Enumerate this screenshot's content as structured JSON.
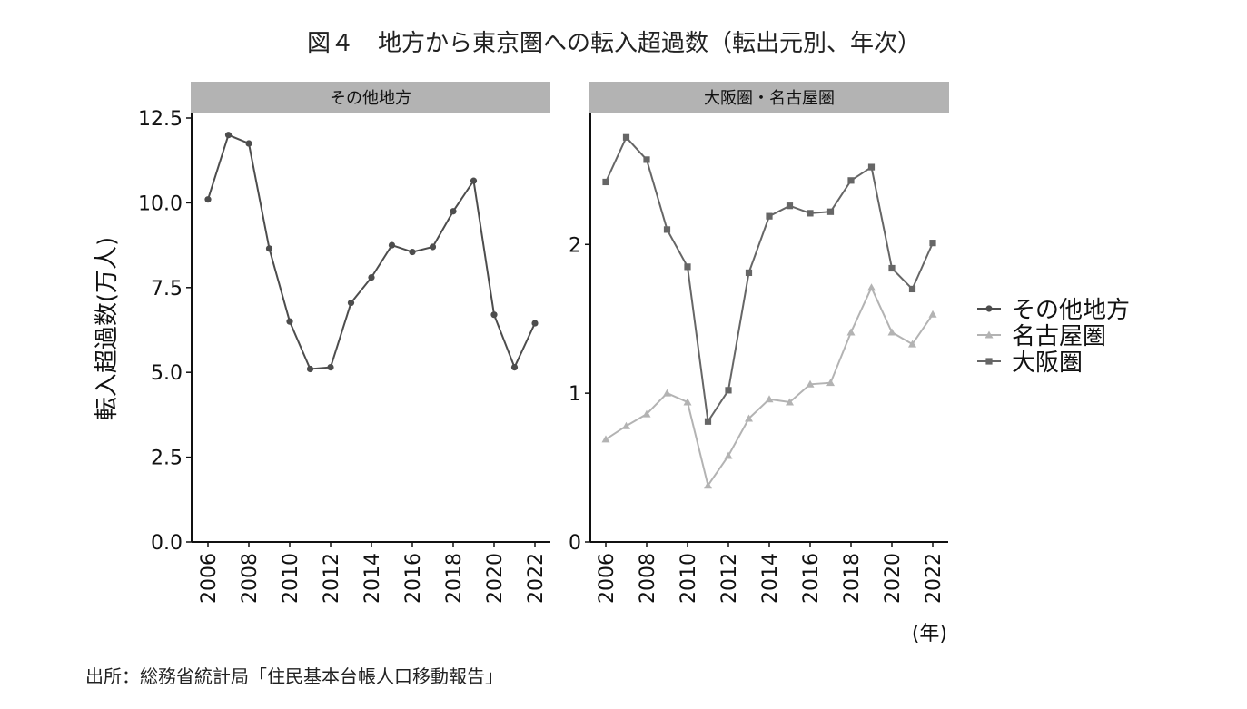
{
  "figure": {
    "title": "図４　地方から東京圏への転入超過数（転出元別、年次）",
    "source": "出所：総務省統計局「住民基本台帳人口移動報告」",
    "ylabel": "転入超過数(万人)",
    "x_unit": "(年)"
  },
  "legend": {
    "items": [
      {
        "label": "その他地方",
        "marker": "circle",
        "color": "#4d4d4d"
      },
      {
        "label": "名古屋圏",
        "marker": "triangle",
        "color": "#b3b3b3"
      },
      {
        "label": "大阪圏",
        "marker": "square",
        "color": "#666666"
      }
    ]
  },
  "chart_data": [
    {
      "type": "line",
      "panel": "その他地方",
      "x": [
        2006,
        2007,
        2008,
        2009,
        2010,
        2011,
        2012,
        2013,
        2014,
        2015,
        2016,
        2017,
        2018,
        2019,
        2020,
        2021,
        2022
      ],
      "xticks": [
        "2006",
        "2008",
        "2010",
        "2012",
        "2014",
        "2016",
        "2018",
        "2020",
        "2022"
      ],
      "ylim": [
        0,
        12.5
      ],
      "yticks": [
        "0.0",
        "2.5",
        "5.0",
        "7.5",
        "10.0",
        "12.5"
      ],
      "series": [
        {
          "name": "その他地方",
          "marker": "circle",
          "color": "#4d4d4d",
          "values": [
            10.1,
            12.0,
            11.75,
            8.65,
            6.5,
            5.1,
            5.15,
            7.05,
            7.8,
            8.75,
            8.55,
            8.7,
            9.75,
            10.65,
            6.7,
            5.15,
            6.45
          ]
        }
      ],
      "grid": false
    },
    {
      "type": "line",
      "panel": "大阪圏・名古屋圏",
      "x": [
        2006,
        2007,
        2008,
        2009,
        2010,
        2011,
        2012,
        2013,
        2014,
        2015,
        2016,
        2017,
        2018,
        2019,
        2020,
        2021,
        2022
      ],
      "xticks": [
        "2006",
        "2008",
        "2010",
        "2012",
        "2014",
        "2016",
        "2018",
        "2020",
        "2022"
      ],
      "ylim": [
        0,
        2.85
      ],
      "yticks": [
        "0",
        "1",
        "2"
      ],
      "series": [
        {
          "name": "名古屋圏",
          "marker": "triangle",
          "color": "#b3b3b3",
          "values": [
            0.69,
            0.78,
            0.86,
            1.0,
            0.94,
            0.38,
            0.58,
            0.83,
            0.96,
            0.94,
            1.06,
            1.07,
            1.41,
            1.71,
            1.41,
            1.33,
            1.53
          ]
        },
        {
          "name": "大阪圏",
          "marker": "square",
          "color": "#666666",
          "values": [
            2.42,
            2.72,
            2.57,
            2.1,
            1.85,
            0.81,
            1.02,
            1.81,
            2.19,
            2.26,
            2.21,
            2.22,
            2.43,
            2.52,
            1.84,
            1.7,
            2.01
          ]
        }
      ],
      "grid": false
    }
  ]
}
